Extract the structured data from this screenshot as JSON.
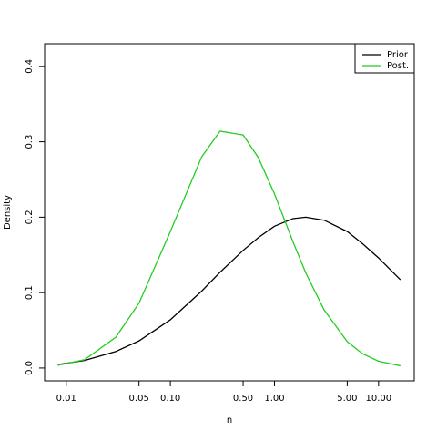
{
  "chart_data": {
    "type": "line",
    "xlabel": "n",
    "ylabel": "Density",
    "xscale": "log",
    "xlim": [
      0.0062,
      22
    ],
    "ylim": [
      -0.017,
      0.43
    ],
    "xticks": [
      0.01,
      0.05,
      {
        "value": 0.1,
        "label": "0.10"
      },
      {
        "value": 0.5,
        "label": "0.50"
      },
      {
        "value": 1,
        "label": "1.00"
      },
      {
        "value": 5,
        "label": "5.00"
      },
      {
        "value": 10,
        "label": "10.00"
      }
    ],
    "yticks": [
      {
        "value": 0,
        "label": "0.0"
      },
      0.1,
      0.2,
      0.3,
      0.4
    ],
    "grid": false,
    "legend": "topright",
    "x": [
      0.0083,
      0.015,
      0.03,
      0.05,
      0.1,
      0.2,
      0.3,
      0.5,
      0.7,
      1,
      1.5,
      2,
      3,
      5,
      7,
      10,
      16.2
    ],
    "series": [
      {
        "name": "Prior",
        "color": "#000000",
        "values": [
          0.0046,
          0.01,
          0.022,
          0.036,
          0.064,
          0.102,
          0.127,
          0.156,
          0.173,
          0.188,
          0.198,
          0.2,
          0.196,
          0.181,
          0.165,
          0.146,
          0.117
        ]
      },
      {
        "name": "Post.",
        "color": "#22cc22",
        "values": [
          0.0035,
          0.011,
          0.041,
          0.086,
          0.181,
          0.28,
          0.314,
          0.309,
          0.279,
          0.231,
          0.168,
          0.126,
          0.077,
          0.035,
          0.019,
          0.009,
          0.003
        ]
      }
    ]
  }
}
